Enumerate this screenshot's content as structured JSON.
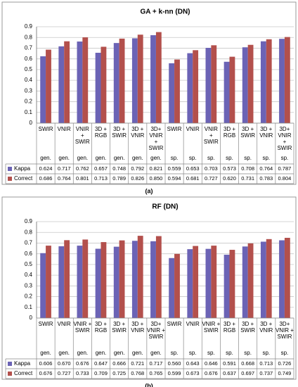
{
  "chart_data": [
    {
      "type": "bar",
      "title": "GA + k-nn (DN)",
      "panel_label": "(a)",
      "categories": [
        [
          "SWIR"
        ],
        [
          "VNIR"
        ],
        [
          "VNIR",
          "+",
          "SWIR"
        ],
        [
          "3D +",
          "RGB"
        ],
        [
          "3D +",
          "SWIR"
        ],
        [
          "3D +",
          "VNIR"
        ],
        [
          "3D+",
          "VNIR",
          "+",
          "SWIR"
        ],
        [
          "SWIR"
        ],
        [
          "VNIR"
        ],
        [
          "VNIR",
          "+",
          "SWIR"
        ],
        [
          "3D +",
          "RGB"
        ],
        [
          "3D +",
          "SWIR"
        ],
        [
          "3D +",
          "VNIR"
        ],
        [
          "3D+",
          "VNIR",
          "+",
          "SWIR"
        ]
      ],
      "subcategories": [
        "gen.",
        "gen.",
        "gen.",
        "gen.",
        "gen.",
        "gen.",
        "gen.",
        "sp.",
        "sp.",
        "sp.",
        "sp.",
        "sp.",
        "sp.",
        "sp."
      ],
      "series": [
        {
          "name": "Kappa",
          "color": "#6b63b5",
          "values": [
            0.624,
            0.717,
            0.762,
            0.657,
            0.748,
            0.792,
            0.821,
            0.559,
            0.653,
            0.703,
            0.573,
            0.708,
            0.764,
            0.787
          ],
          "value_labels": [
            "0.624",
            "0.717",
            "0.762",
            "0.657",
            "0.748",
            "0.792",
            "0.821",
            "0.559",
            "0.653",
            "0.703",
            "0.573",
            "0.708",
            "0.764",
            "0.787"
          ]
        },
        {
          "name": "Correct",
          "color": "#b3504c",
          "values": [
            0.686,
            0.764,
            0.801,
            0.713,
            0.789,
            0.826,
            0.85,
            0.594,
            0.681,
            0.727,
            0.62,
            0.731,
            0.783,
            0.804
          ],
          "value_labels": [
            "0.686",
            "0.764",
            "0.801",
            "0.713",
            "0.789",
            "0.826",
            "0.850",
            "0.594",
            "0.681",
            "0.727",
            "0.620",
            "0.731",
            "0.783",
            "0.804"
          ]
        }
      ],
      "ylim": [
        0,
        0.9
      ],
      "yticks": [
        0,
        0.1,
        0.2,
        0.3,
        0.4,
        0.5,
        0.6,
        0.7,
        0.8,
        0.9
      ],
      "grid": true
    },
    {
      "type": "bar",
      "title": "RF (DN)",
      "panel_label": "(b)",
      "categories": [
        [
          "SWIR"
        ],
        [
          "VNIR"
        ],
        [
          "VNIR +",
          "SWIR"
        ],
        [
          "3D +",
          "RGB"
        ],
        [
          "3D +",
          "SWIR"
        ],
        [
          "3D +",
          "VNIR"
        ],
        [
          "3D+",
          "VNIR +",
          "SWIR"
        ],
        [
          "SWIR"
        ],
        [
          "VNIR"
        ],
        [
          "VNIR +",
          "SWIR"
        ],
        [
          "3D +",
          "RGB"
        ],
        [
          "3D +",
          "SWIR"
        ],
        [
          "3D +",
          "VNIR"
        ],
        [
          "3D+",
          "VNIR +",
          "SWIR"
        ]
      ],
      "subcategories": [
        "gen.",
        "gen.",
        "gen.",
        "gen.",
        "gen.",
        "gen.",
        "gen.",
        "sp.",
        "sp.",
        "sp.",
        "sp.",
        "sp.",
        "sp.",
        "sp."
      ],
      "series": [
        {
          "name": "Kappa",
          "color": "#6b63b5",
          "values": [
            0.606,
            0.67,
            0.676,
            0.647,
            0.666,
            0.721,
            0.717,
            0.56,
            0.643,
            0.646,
            0.591,
            0.668,
            0.713,
            0.726
          ],
          "value_labels": [
            "0.606",
            "0.670",
            "0.676",
            "0.647",
            "0.666",
            "0.721",
            "0.717",
            "0.560",
            "0.643",
            "0.646",
            "0.591",
            "0.668",
            "0.713",
            "0.726"
          ]
        },
        {
          "name": "Correct",
          "color": "#b3504c",
          "values": [
            0.676,
            0.727,
            0.733,
            0.709,
            0.725,
            0.768,
            0.765,
            0.599,
            0.673,
            0.676,
            0.637,
            0.697,
            0.737,
            0.749
          ],
          "value_labels": [
            "0.676",
            "0.727",
            "0.733",
            "0.709",
            "0.725",
            "0.768",
            "0.765",
            "0.599",
            "0.673",
            "0.676",
            "0.637",
            "0.697",
            "0.737",
            "0.749"
          ]
        }
      ],
      "ylim": [
        0,
        0.9
      ],
      "yticks": [
        0,
        0.1,
        0.2,
        0.3,
        0.4,
        0.5,
        0.6,
        0.7,
        0.8,
        0.9
      ],
      "grid": true
    }
  ]
}
